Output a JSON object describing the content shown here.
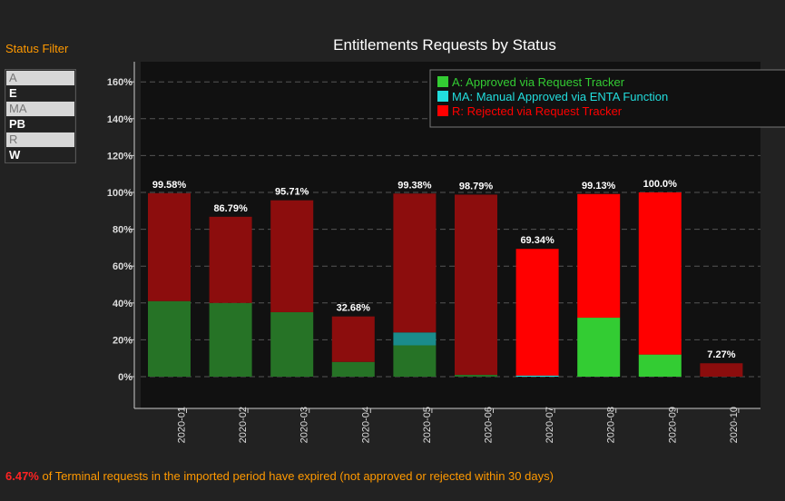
{
  "filter": {
    "title": "Status Filter",
    "items": [
      {
        "label": "A",
        "selected": true
      },
      {
        "label": "E",
        "selected": false
      },
      {
        "label": "MA",
        "selected": true
      },
      {
        "label": "PB",
        "selected": false
      },
      {
        "label": "R",
        "selected": true
      },
      {
        "label": "W",
        "selected": false
      }
    ]
  },
  "footer": {
    "percent": "6.47%",
    "text": " of Terminal requests in the imported period have expired (not approved or rejected within 30 days)"
  },
  "chart_data": {
    "type": "bar",
    "stacked": true,
    "title": "Entitlements Requests by Status",
    "xlabel": "",
    "ylabel": "",
    "ylim": [
      -10,
      170
    ],
    "yticks": [
      0,
      20,
      40,
      60,
      80,
      100,
      120,
      140,
      160
    ],
    "ytick_labels": [
      "0%",
      "20%",
      "40%",
      "60%",
      "80%",
      "100%",
      "120%",
      "140%",
      "160%"
    ],
    "grid": true,
    "legend_position": "top-right",
    "categories": [
      "2020-01",
      "2020-02",
      "2020-03",
      "2020-04",
      "2020-05",
      "2020-06",
      "2020-07",
      "2020-08",
      "2020-09",
      "2020-10"
    ],
    "totals": [
      "99.58%",
      "86.79%",
      "95.71%",
      "32.68%",
      "99.38%",
      "98.79%",
      "69.34%",
      "99.13%",
      "100.0%",
      "7.27%"
    ],
    "total_values": [
      99.58,
      86.79,
      95.71,
      32.68,
      99.38,
      98.79,
      69.34,
      99.13,
      100.0,
      7.27
    ],
    "series": [
      {
        "name": "A: Approved via Request Tracker",
        "color": "#33cc33",
        "values": [
          41,
          40,
          35,
          8,
          17,
          1,
          0,
          32,
          12,
          0
        ]
      },
      {
        "name": "MA: Manual Approved via ENTA Function",
        "color": "#22dddd",
        "values": [
          0,
          0,
          0,
          0,
          7,
          0,
          0.6,
          0,
          0,
          0
        ]
      },
      {
        "name": "R: Rejected via Request Tracker",
        "color": "#ff0000",
        "values": [
          58.58,
          46.79,
          60.71,
          24.68,
          75.38,
          97.79,
          68.74,
          67.13,
          88.0,
          7.27
        ]
      }
    ],
    "highlighted": [
      false,
      false,
      false,
      false,
      false,
      false,
      true,
      true,
      true,
      false
    ],
    "highlight_colors": {
      "#33cc33": "#33cc33",
      "#22dddd": "#22dddd",
      "#ff0000": "#ff0000"
    },
    "dim_colors": {
      "#33cc33": "#267326",
      "#22dddd": "#1a8c8c",
      "#ff0000": "#8c0d0d"
    }
  }
}
